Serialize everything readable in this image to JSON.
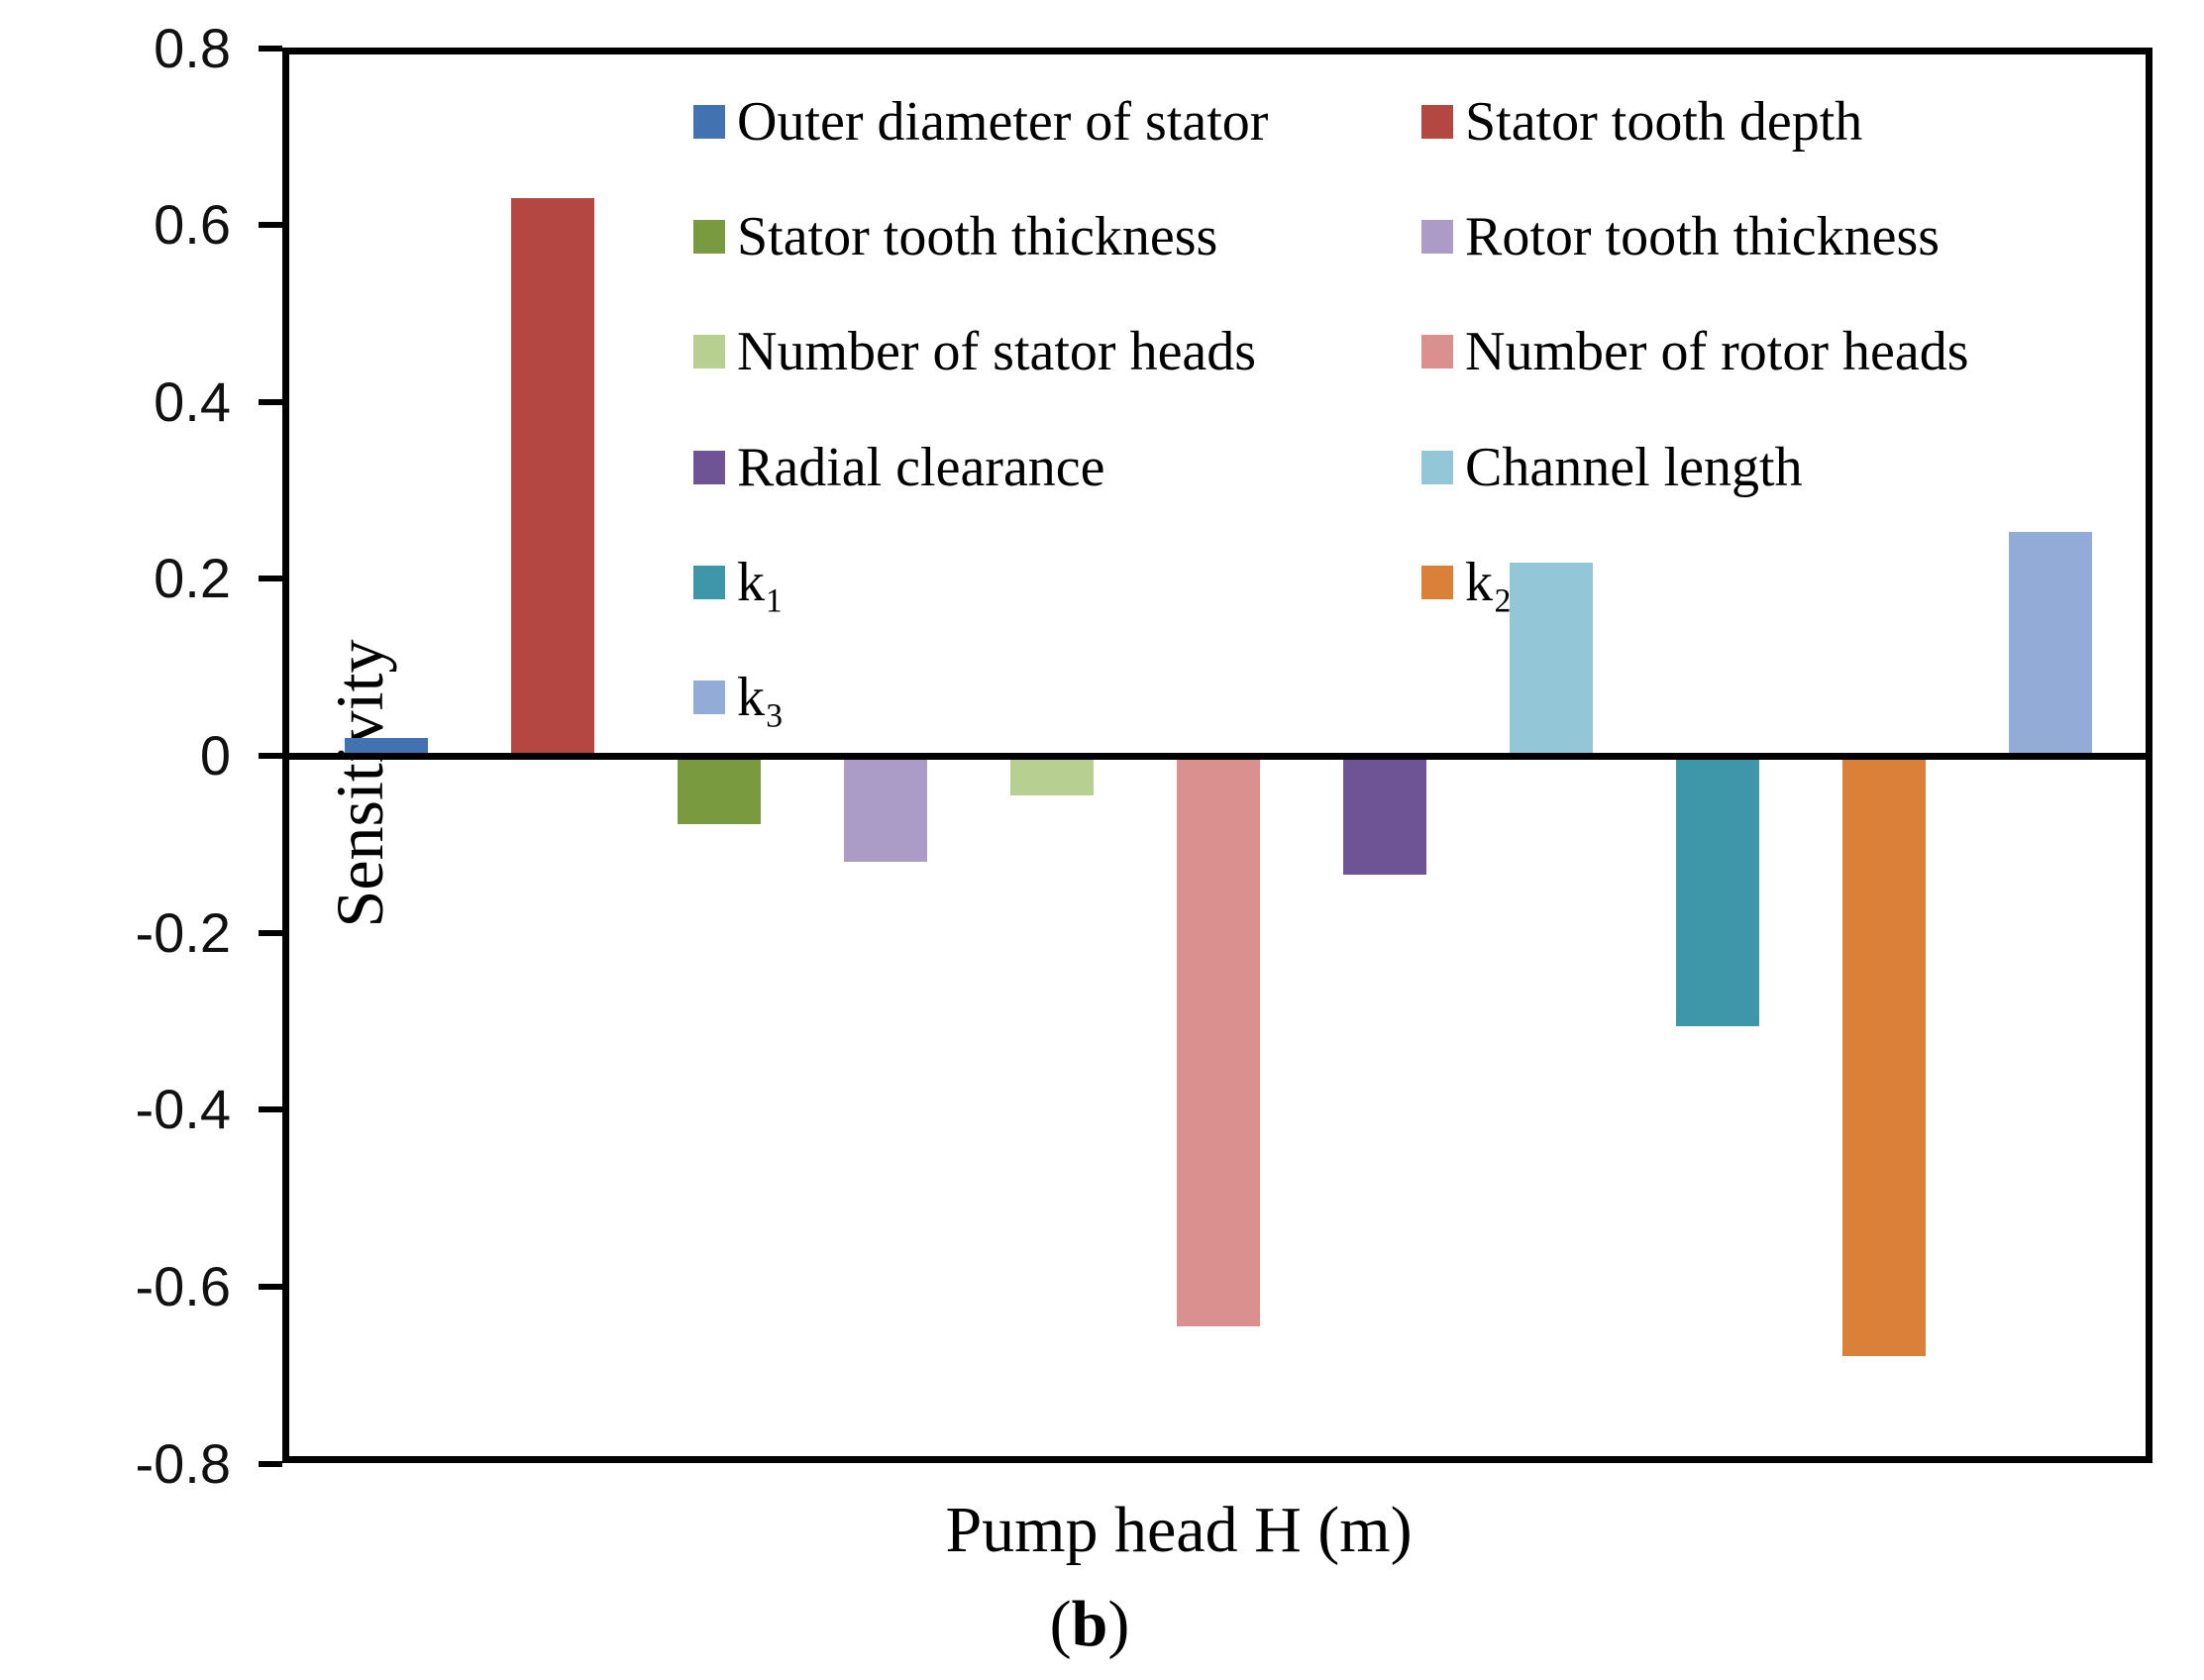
{
  "figure": {
    "background": "#ffffff",
    "frame_color": "#000000"
  },
  "y_axis": {
    "label": "Sensitivity",
    "ticks": [
      "0.8",
      "0.6",
      "0.4",
      "0.2",
      "0",
      "-0.2",
      "-0.4",
      "-0.6",
      "-0.8"
    ],
    "min": -0.8,
    "max": 0.8
  },
  "x_axis": {
    "title": "Pump head H (m)"
  },
  "caption": {
    "open": "(",
    "letter": "b",
    "close": ")"
  },
  "chart_data": {
    "type": "bar",
    "title": "",
    "xlabel": "Pump head H (m)",
    "ylabel": "Sensitivity",
    "ylim": [
      -0.8,
      0.8
    ],
    "ytick_step": 0.2,
    "grid": false,
    "zero_baseline_line": true,
    "legend_position": "inside upper area, two columns",
    "categories": [
      "Outer diameter of stator",
      "Stator tooth depth",
      "Stator tooth thickness",
      "Rotor tooth thickness",
      "Number of stator heads",
      "Number of rotor heads",
      "Radial clearance",
      "Channel length",
      "k₁",
      "k₂",
      "k₃"
    ],
    "values": [
      0.02,
      0.63,
      -0.077,
      -0.12,
      -0.045,
      -0.645,
      -0.134,
      0.218,
      -0.306,
      -0.679,
      0.253
    ],
    "colors": [
      "#4273B0",
      "#B54743",
      "#7A9A40",
      "#AA9BC7",
      "#B7CF90",
      "#D9908F",
      "#6E5495",
      "#93C7D7",
      "#3E96A9",
      "#DB8038",
      "#93ABD7"
    ]
  },
  "legend": {
    "columns": 2,
    "entries": [
      {
        "label": "Outer diameter of stator",
        "color": "#4273B0",
        "col": 0,
        "row": 0
      },
      {
        "label": "Stator tooth depth",
        "color": "#B54743",
        "col": 1,
        "row": 0
      },
      {
        "label": "Stator tooth thickness",
        "color": "#7A9A40",
        "col": 0,
        "row": 1
      },
      {
        "label": "Rotor tooth thickness",
        "color": "#AA9BC7",
        "col": 1,
        "row": 1
      },
      {
        "label": "Number of stator heads",
        "color": "#B7CF90",
        "col": 0,
        "row": 2
      },
      {
        "label": "Number of rotor heads",
        "color": "#D9908F",
        "col": 1,
        "row": 2
      },
      {
        "label": "Radial clearance",
        "color": "#6E5495",
        "col": 0,
        "row": 3
      },
      {
        "label": "Channel length",
        "color": "#93C7D7",
        "col": 1,
        "row": 3
      },
      {
        "label": "k₁",
        "color": "#3E96A9",
        "col": 0,
        "row": 4
      },
      {
        "label": "k₂",
        "color": "#DB8038",
        "col": 1,
        "row": 4
      },
      {
        "label": "k₃",
        "color": "#93ABD7",
        "col": 0,
        "row": 5
      }
    ]
  }
}
